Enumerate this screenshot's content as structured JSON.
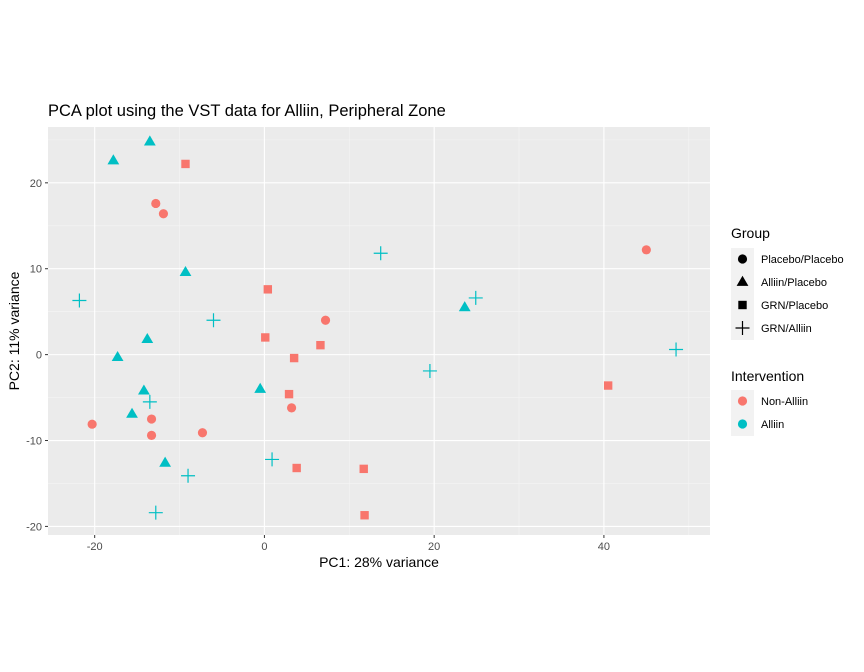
{
  "chart_data": {
    "type": "scatter",
    "title": "PCA plot using the VST data for Alliin, Peripheral Zone",
    "xlabel": "PC1: 28% variance",
    "ylabel": "PC2: 11% variance",
    "xlim": [
      -25.5,
      52.5
    ],
    "ylim": [
      -21,
      26.5
    ],
    "xticks": [
      -20,
      0,
      20,
      40
    ],
    "yticks": [
      -20,
      -10,
      0,
      10,
      20
    ],
    "xtick_labels": [
      "-20",
      "0",
      "20",
      "40"
    ],
    "ytick_labels": [
      "-20",
      "-10",
      "0",
      "10",
      "20"
    ],
    "grid": true,
    "legend_position": "right",
    "colors": {
      "Non-Alliin": "#F8766D",
      "Alliin": "#00BFC4"
    },
    "legend": {
      "group_title": "Group",
      "group_items": [
        {
          "label": "Placebo/Placebo",
          "shape": "circle"
        },
        {
          "label": "Alliin/Placebo",
          "shape": "triangle"
        },
        {
          "label": "GRN/Placebo",
          "shape": "square"
        },
        {
          "label": "GRN/Alliin",
          "shape": "plus"
        }
      ],
      "intervention_title": "Intervention",
      "intervention_items": [
        {
          "label": "Non-Alliin",
          "color": "#F8766D"
        },
        {
          "label": "Alliin",
          "color": "#00BFC4"
        }
      ]
    },
    "points": [
      {
        "x": -12.8,
        "y": 17.6,
        "group": "Placebo/Placebo",
        "intervention": "Non-Alliin"
      },
      {
        "x": -11.9,
        "y": 16.4,
        "group": "Placebo/Placebo",
        "intervention": "Non-Alliin"
      },
      {
        "x": 7.2,
        "y": 4.0,
        "group": "Placebo/Placebo",
        "intervention": "Non-Alliin"
      },
      {
        "x": 45.0,
        "y": 12.2,
        "group": "Placebo/Placebo",
        "intervention": "Non-Alliin"
      },
      {
        "x": 3.2,
        "y": -6.2,
        "group": "Placebo/Placebo",
        "intervention": "Non-Alliin"
      },
      {
        "x": -20.3,
        "y": -8.1,
        "group": "Placebo/Placebo",
        "intervention": "Non-Alliin"
      },
      {
        "x": -13.3,
        "y": -7.5,
        "group": "Placebo/Placebo",
        "intervention": "Non-Alliin"
      },
      {
        "x": -13.3,
        "y": -9.4,
        "group": "Placebo/Placebo",
        "intervention": "Non-Alliin"
      },
      {
        "x": -7.3,
        "y": -9.1,
        "group": "Placebo/Placebo",
        "intervention": "Non-Alliin"
      },
      {
        "x": -13.5,
        "y": 24.8,
        "group": "Alliin/Placebo",
        "intervention": "Alliin"
      },
      {
        "x": -17.8,
        "y": 22.6,
        "group": "Alliin/Placebo",
        "intervention": "Alliin"
      },
      {
        "x": -9.3,
        "y": 9.6,
        "group": "Alliin/Placebo",
        "intervention": "Alliin"
      },
      {
        "x": -13.8,
        "y": 1.8,
        "group": "Alliin/Placebo",
        "intervention": "Alliin"
      },
      {
        "x": -17.3,
        "y": -0.3,
        "group": "Alliin/Placebo",
        "intervention": "Alliin"
      },
      {
        "x": 23.6,
        "y": 5.5,
        "group": "Alliin/Placebo",
        "intervention": "Alliin"
      },
      {
        "x": -14.2,
        "y": -4.2,
        "group": "Alliin/Placebo",
        "intervention": "Alliin"
      },
      {
        "x": -15.6,
        "y": -6.9,
        "group": "Alliin/Placebo",
        "intervention": "Alliin"
      },
      {
        "x": -0.5,
        "y": -4.0,
        "group": "Alliin/Placebo",
        "intervention": "Alliin"
      },
      {
        "x": -11.7,
        "y": -12.6,
        "group": "Alliin/Placebo",
        "intervention": "Alliin"
      },
      {
        "x": -9.3,
        "y": 22.2,
        "group": "GRN/Placebo",
        "intervention": "Non-Alliin"
      },
      {
        "x": 0.4,
        "y": 7.6,
        "group": "GRN/Placebo",
        "intervention": "Non-Alliin"
      },
      {
        "x": 0.1,
        "y": 2.0,
        "group": "GRN/Placebo",
        "intervention": "Non-Alliin"
      },
      {
        "x": 3.5,
        "y": -0.4,
        "group": "GRN/Placebo",
        "intervention": "Non-Alliin"
      },
      {
        "x": 6.6,
        "y": 1.1,
        "group": "GRN/Placebo",
        "intervention": "Non-Alliin"
      },
      {
        "x": 2.9,
        "y": -4.6,
        "group": "GRN/Placebo",
        "intervention": "Non-Alliin"
      },
      {
        "x": 40.5,
        "y": -3.6,
        "group": "GRN/Placebo",
        "intervention": "Non-Alliin"
      },
      {
        "x": 3.8,
        "y": -13.2,
        "group": "GRN/Placebo",
        "intervention": "Non-Alliin"
      },
      {
        "x": 11.7,
        "y": -13.3,
        "group": "GRN/Placebo",
        "intervention": "Non-Alliin"
      },
      {
        "x": 11.8,
        "y": -18.7,
        "group": "GRN/Placebo",
        "intervention": "Non-Alliin"
      },
      {
        "x": 13.7,
        "y": 11.8,
        "group": "GRN/Alliin",
        "intervention": "Alliin"
      },
      {
        "x": -21.8,
        "y": 6.3,
        "group": "GRN/Alliin",
        "intervention": "Alliin"
      },
      {
        "x": -6.0,
        "y": 4.0,
        "group": "GRN/Alliin",
        "intervention": "Alliin"
      },
      {
        "x": 24.9,
        "y": 6.6,
        "group": "GRN/Alliin",
        "intervention": "Alliin"
      },
      {
        "x": 48.5,
        "y": 0.6,
        "group": "GRN/Alliin",
        "intervention": "Alliin"
      },
      {
        "x": 19.5,
        "y": -1.9,
        "group": "GRN/Alliin",
        "intervention": "Alliin"
      },
      {
        "x": -13.5,
        "y": -5.5,
        "group": "GRN/Alliin",
        "intervention": "Alliin"
      },
      {
        "x": 0.9,
        "y": -12.2,
        "group": "GRN/Alliin",
        "intervention": "Alliin"
      },
      {
        "x": -9.0,
        "y": -14.1,
        "group": "GRN/Alliin",
        "intervention": "Alliin"
      },
      {
        "x": -12.8,
        "y": -18.4,
        "group": "GRN/Alliin",
        "intervention": "Alliin"
      }
    ]
  }
}
